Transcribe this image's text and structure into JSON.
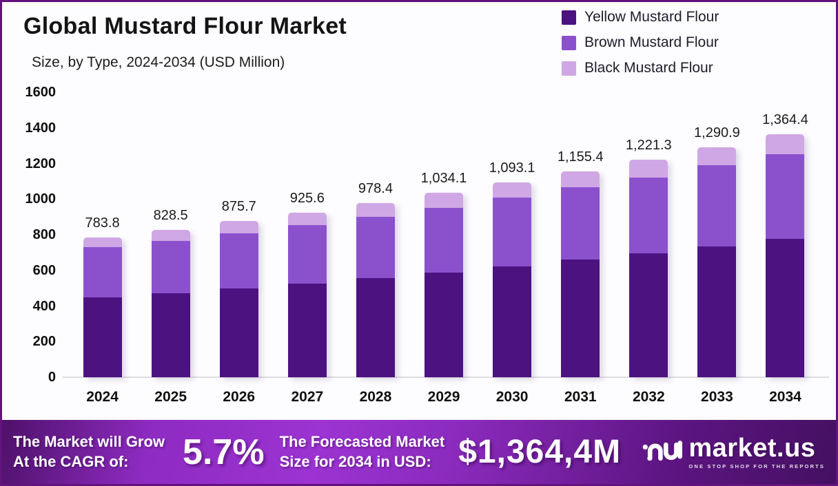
{
  "header": {
    "title": "Global Mustard Flour Market",
    "subtitle": "Size, by Type, 2024-2034 (USD Million)"
  },
  "legend": {
    "items": [
      {
        "label": "Yellow Mustard Flour",
        "color": "#4c1280"
      },
      {
        "label": "Brown Mustard Flour",
        "color": "#8b51cd"
      },
      {
        "label": "Black Mustard Flour",
        "color": "#cfa7e5"
      }
    ]
  },
  "chart_data": {
    "type": "bar",
    "stacked": true,
    "title": "Global Mustard Flour Market Size, by Type, 2024-2034 (USD Million)",
    "categories": [
      "2024",
      "2025",
      "2026",
      "2027",
      "2028",
      "2029",
      "2030",
      "2031",
      "2032",
      "2033",
      "2034"
    ],
    "series": [
      {
        "name": "Yellow Mustard Flour",
        "color": "#4c1280",
        "values": [
          447.0,
          471.0,
          497.0,
          527.0,
          557.0,
          589.0,
          622.0,
          660.0,
          695.0,
          734.0,
          776.0
        ]
      },
      {
        "name": "Brown Mustard Flour",
        "color": "#8b51cd",
        "values": [
          282.0,
          294.0,
          309.0,
          326.0,
          344.0,
          363.0,
          385.0,
          408.0,
          425.0,
          457.0,
          477.0
        ]
      },
      {
        "name": "Black Mustard Flour",
        "color": "#cfa7e5",
        "values": [
          54.8,
          63.5,
          69.7,
          72.6,
          77.4,
          82.1,
          86.1,
          87.4,
          101.3,
          99.9,
          111.4
        ]
      }
    ],
    "totals": [
      783.8,
      828.5,
      875.7,
      925.6,
      978.4,
      1034.1,
      1093.1,
      1155.4,
      1221.3,
      1290.9,
      1364.4
    ],
    "total_labels": [
      "783.8",
      "828.5",
      "875.7",
      "925.6",
      "978.4",
      "1,034.1",
      "1,093.1",
      "1,155.4",
      "1,221.3",
      "1,290.9",
      "1,364.4"
    ],
    "xlabel": "",
    "ylabel": "",
    "ylim": [
      0,
      1600
    ],
    "yticks": [
      0,
      200,
      400,
      600,
      800,
      1000,
      1200,
      1400,
      1600
    ],
    "grid": false,
    "legend_position": "top-right"
  },
  "footer": {
    "cagr_line1": "The Market will Grow",
    "cagr_line2": "At the CAGR of:",
    "cagr_value": "5.7%",
    "forecast_line1": "The Forecasted Market",
    "forecast_line2": "Size for 2034 in USD:",
    "forecast_value": "$1,364,4M",
    "brand_name": "market.us",
    "brand_tagline": "ONE STOP SHOP FOR THE REPORTS"
  }
}
